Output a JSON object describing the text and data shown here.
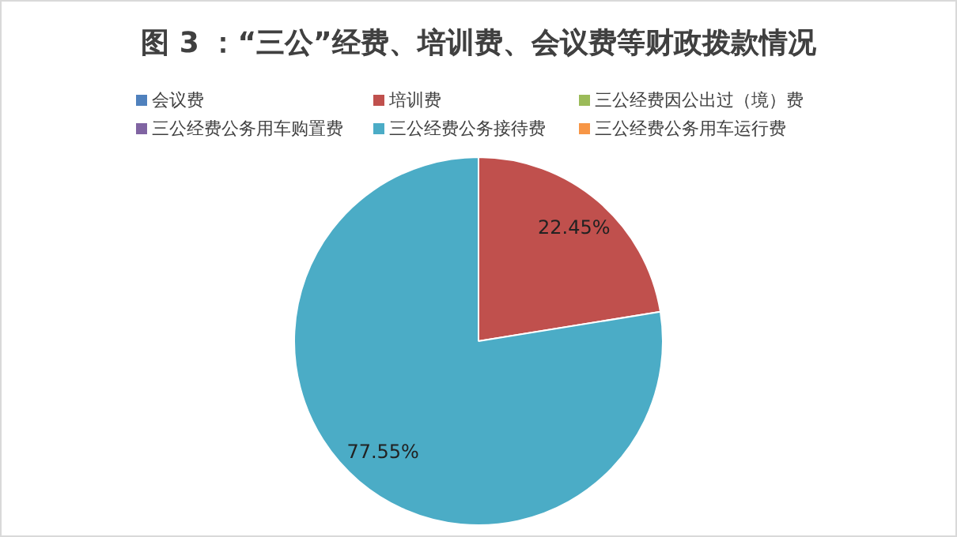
{
  "chart_data": {
    "type": "pie",
    "title": "图 3 ：“三公”经费、培训费、会议费等财政拨款情况",
    "categories": [
      "会议费",
      "培训费",
      "三公经费因公出过（境）费",
      "三公经费公务用车购置费",
      "三公经费公务接待费",
      "三公经费公务用车运行费"
    ],
    "values": [
      0,
      22.45,
      0,
      0,
      77.55,
      0
    ],
    "value_labels": [
      null,
      "22.45%",
      null,
      null,
      "77.55%",
      null
    ],
    "colors": [
      "#4f81bd",
      "#c0504d",
      "#9bbb59",
      "#8064a2",
      "#4bacc6",
      "#f79646"
    ],
    "legend": "top"
  }
}
